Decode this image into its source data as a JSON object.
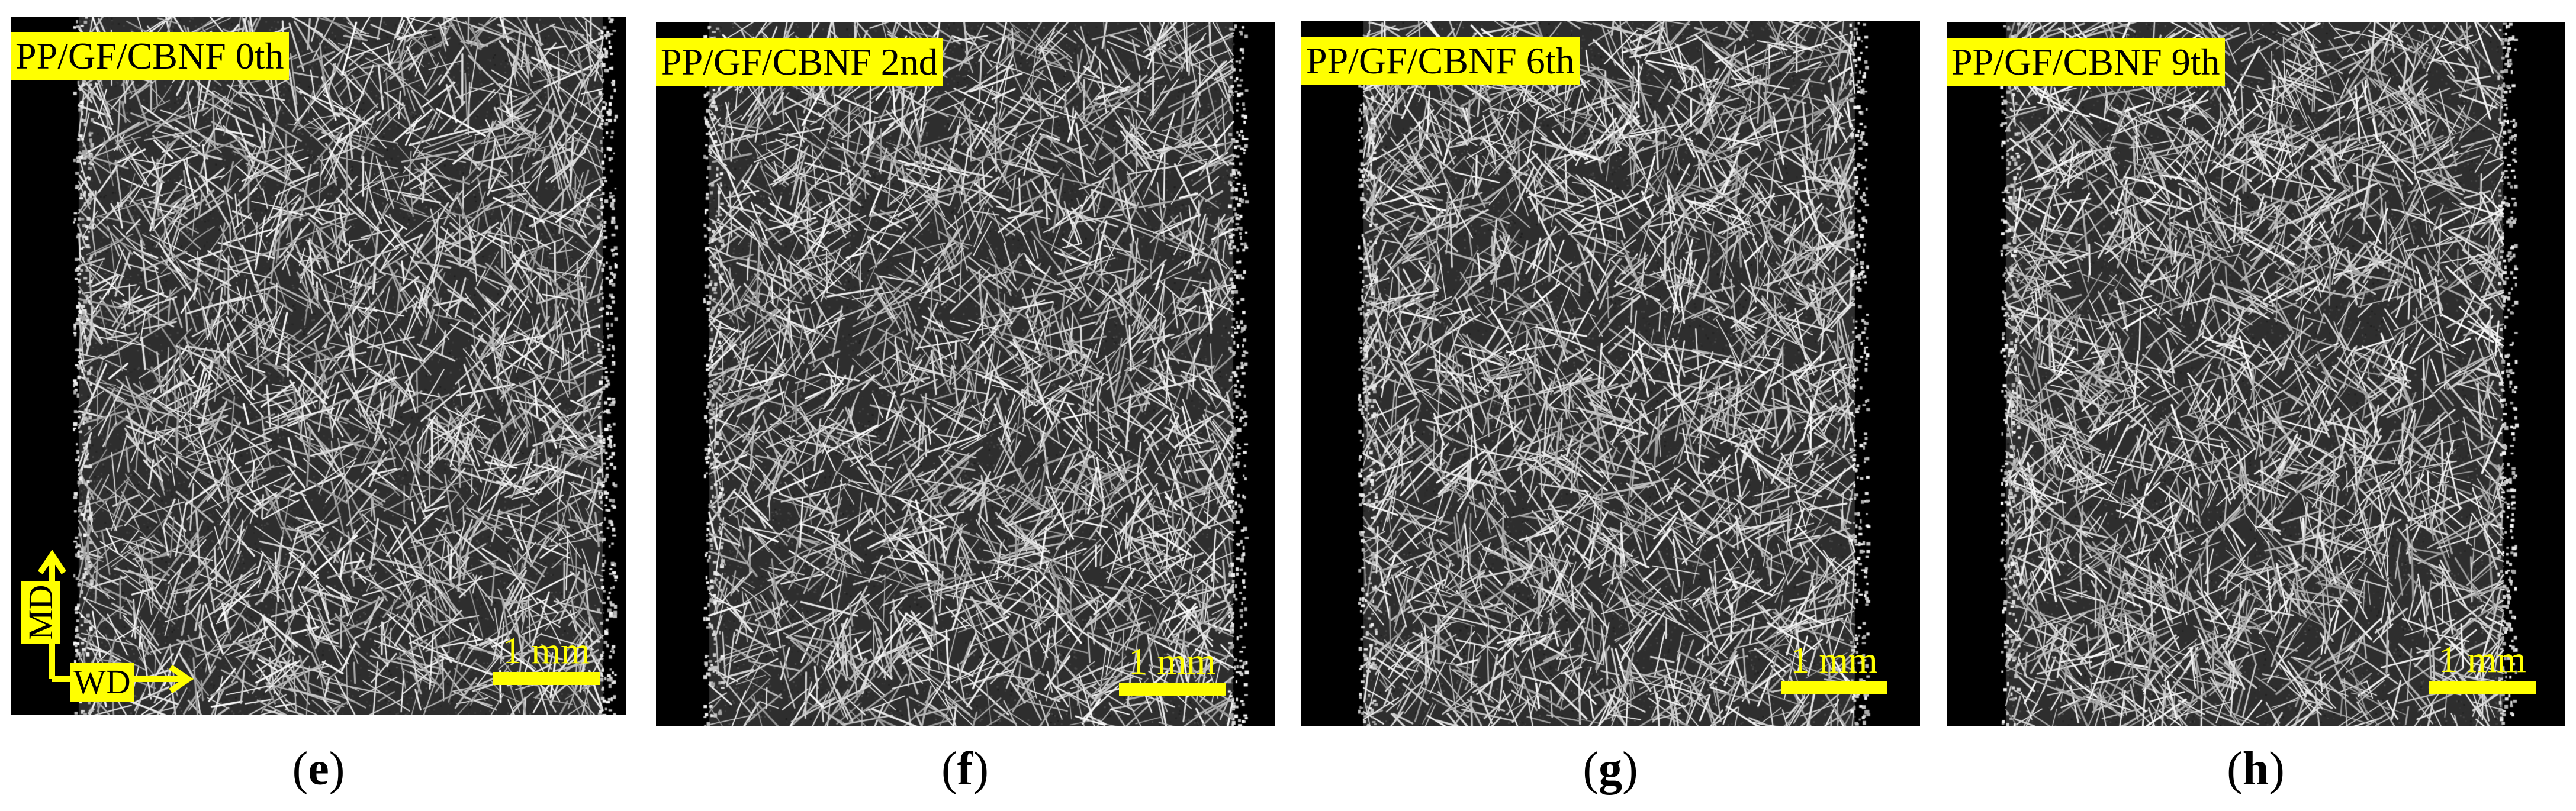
{
  "panels": [
    {
      "id": "e",
      "title": "PP/GF/CBNF 0th",
      "scale_label": "1 mm",
      "caption_letter": "e"
    },
    {
      "id": "f",
      "title": "PP/GF/CBNF 2nd",
      "scale_label": "1 mm",
      "caption_letter": "f"
    },
    {
      "id": "g",
      "title": "PP/GF/CBNF 6th",
      "scale_label": "1 mm",
      "caption_letter": "g"
    },
    {
      "id": "h",
      "title": "PP/GF/CBNF 9th",
      "scale_label": "1 mm",
      "caption_letter": "h"
    }
  ],
  "axes": {
    "md": "MD",
    "wd": "WD"
  },
  "colors": {
    "label_bg": "#ffff00",
    "scale_bar": "#ffff00",
    "background": "#000000",
    "fibers": "#ffffff"
  }
}
